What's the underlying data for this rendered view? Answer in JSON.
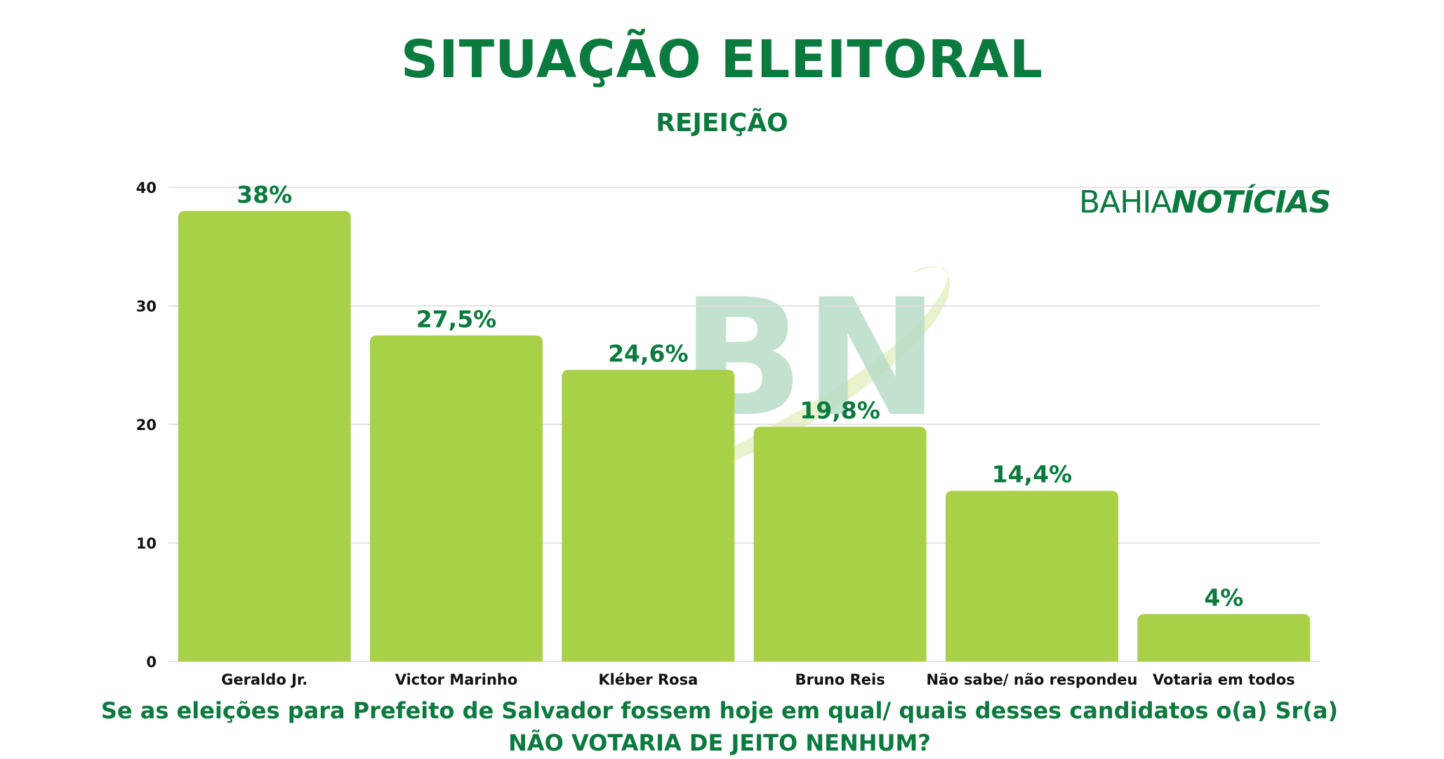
{
  "header": {
    "title": "SITUAÇÃO ELEITORAL",
    "subtitle": "REJEIÇÃO"
  },
  "logo": {
    "part1": "BAHIA",
    "part2": "NOTÍCIAS",
    "watermark": "BN"
  },
  "footer": {
    "question": "Se as eleições para Prefeito de Salvador fossem hoje em qual/ quais desses candidatos o(a) Sr(a) NÃO VOTARIA DE JEITO NENHUM?"
  },
  "colors": {
    "brand_green": "#0b7a3e",
    "bar_green": "#a8d147",
    "grid": "#dcdcdc"
  },
  "chart_data": {
    "type": "bar",
    "categories": [
      "Geraldo Jr.",
      "Victor Marinho",
      "Kléber Rosa",
      "Bruno Reis",
      "Não sabe/ não respondeu",
      "Votaria em todos"
    ],
    "values": [
      38,
      27.5,
      24.6,
      19.8,
      14.4,
      4
    ],
    "value_labels": [
      "38%",
      "27,5%",
      "24,6%",
      "19,8%",
      "14,4%",
      "4%"
    ],
    "yticks": [
      0,
      10,
      20,
      30,
      40
    ],
    "ylim": [
      0,
      40
    ],
    "grid": true,
    "xlabel": "",
    "ylabel": ""
  }
}
